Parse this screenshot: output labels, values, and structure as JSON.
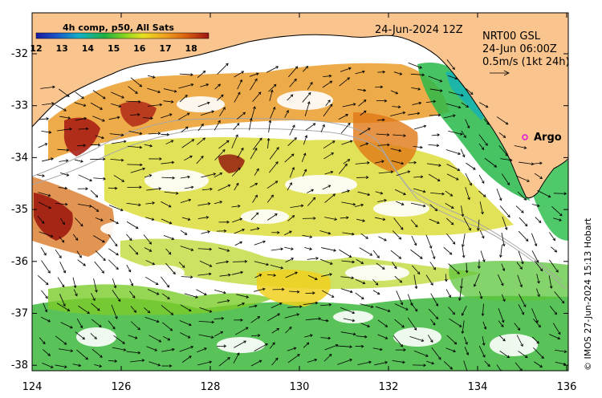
{
  "map": {
    "timestamp": "24-Jun-2024 12Z",
    "current_label": [
      "NRT00 GSL",
      "24-Jun 06:00Z",
      "0.5m/s (1kt 24h)"
    ],
    "argo_label": "Argo",
    "credit": "© IMOS 27-Jun-2024 15:13 Hobart",
    "colorbar": {
      "title": "4h comp, p50, All Sats",
      "ticks": [
        "12",
        "13",
        "14",
        "15",
        "16",
        "17",
        "18"
      ]
    },
    "lon_ticks": [
      "124",
      "126",
      "128",
      "130",
      "132",
      "134",
      "136"
    ],
    "lat_ticks": [
      "-32",
      "-33",
      "-34",
      "-35",
      "-36",
      "-37",
      "-38"
    ],
    "colors": {
      "land": "#f9c48e",
      "ocean_nodata": "#ffffff",
      "sst_cold": "#1b1ba0",
      "sst_warm": "#a01414",
      "argo_marker": "#e010e0"
    }
  }
}
